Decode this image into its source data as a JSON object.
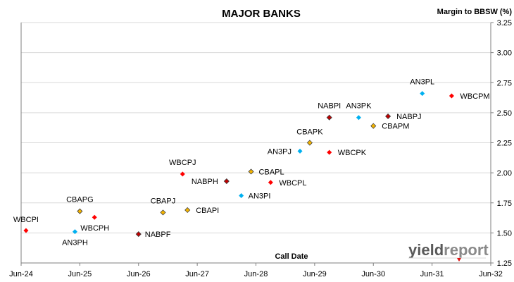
{
  "chart_data": {
    "type": "scatter",
    "title": "MAJOR BANKS",
    "xlabel": "Call Date",
    "ylabel": "Margin to BBSW (%)",
    "x_ticks": [
      "Jun-24",
      "Jun-25",
      "Jun-26",
      "Jun-27",
      "Jun-28",
      "Jun-29",
      "Jun-30",
      "Jun-31",
      "Jun-32"
    ],
    "y_ticks": [
      "1.25",
      "1.50",
      "1.75",
      "2.00",
      "2.25",
      "2.50",
      "2.75",
      "3.00",
      "3.25"
    ],
    "xlim": [
      "2024-06",
      "2032-06"
    ],
    "ylim": [
      1.25,
      3.25
    ],
    "grid": true,
    "colors": {
      "WBC": "#ff0000",
      "CBA": "#f4b400",
      "NAB": "#c00000",
      "ANZ": "#00b0f0"
    },
    "points": [
      {
        "label": "WBCPI",
        "x": "2024-07",
        "y": 1.52,
        "issuer": "WBC"
      },
      {
        "label": "AN3PH",
        "x": "2025-05",
        "y": 1.51,
        "issuer": "ANZ"
      },
      {
        "label": "CBAPG",
        "x": "2025-06",
        "y": 1.68,
        "issuer": "CBA"
      },
      {
        "label": "WBCPH",
        "x": "2025-09",
        "y": 1.63,
        "issuer": "WBC"
      },
      {
        "label": "NABPF",
        "x": "2026-06",
        "y": 1.49,
        "issuer": "NAB"
      },
      {
        "label": "CBAPJ",
        "x": "2026-11",
        "y": 1.67,
        "issuer": "CBA"
      },
      {
        "label": "WBCPJ",
        "x": "2027-03",
        "y": 1.99,
        "issuer": "WBC"
      },
      {
        "label": "CBAPI",
        "x": "2027-04",
        "y": 1.69,
        "issuer": "CBA"
      },
      {
        "label": "NABPH",
        "x": "2027-12",
        "y": 1.93,
        "issuer": "NAB"
      },
      {
        "label": "AN3PI",
        "x": "2028-03",
        "y": 1.81,
        "issuer": "ANZ"
      },
      {
        "label": "CBAPL",
        "x": "2028-05",
        "y": 2.01,
        "issuer": "CBA"
      },
      {
        "label": "WBCPL",
        "x": "2028-09",
        "y": 1.92,
        "issuer": "WBC"
      },
      {
        "label": "AN3PJ",
        "x": "2029-03",
        "y": 2.18,
        "issuer": "ANZ"
      },
      {
        "label": "CBAPK",
        "x": "2029-05",
        "y": 2.25,
        "issuer": "CBA"
      },
      {
        "label": "NABPI",
        "x": "2029-09",
        "y": 2.46,
        "issuer": "NAB"
      },
      {
        "label": "WBCPK",
        "x": "2029-09",
        "y": 2.17,
        "issuer": "WBC"
      },
      {
        "label": "AN3PK",
        "x": "2030-03",
        "y": 2.46,
        "issuer": "ANZ"
      },
      {
        "label": "CBAPM",
        "x": "2030-06",
        "y": 2.39,
        "issuer": "CBA"
      },
      {
        "label": "NABPJ",
        "x": "2030-09",
        "y": 2.47,
        "issuer": "NAB"
      },
      {
        "label": "AN3PL",
        "x": "2031-04",
        "y": 2.66,
        "issuer": "ANZ"
      },
      {
        "label": "WBCPM",
        "x": "2031-10",
        "y": 2.64,
        "issuer": "WBC"
      }
    ]
  },
  "logo": {
    "part1": "yield",
    "part2": "report"
  }
}
